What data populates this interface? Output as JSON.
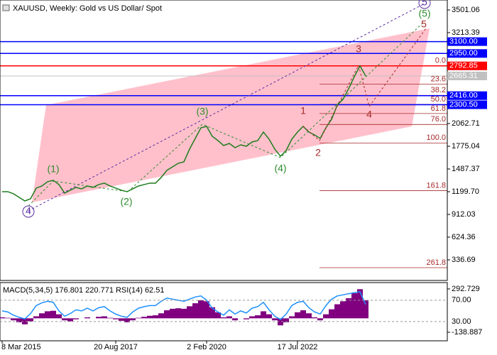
{
  "chart_data": {
    "type": "line",
    "title": "XAUUSD, Weekly:  Gold vs US Dollar/ Spot",
    "categories": [
      "8 Mar 2015",
      null,
      null,
      null,
      null,
      null,
      null,
      null,
      null,
      null,
      null,
      null,
      null,
      null,
      null,
      null,
      null,
      null,
      null,
      null,
      "20 Aug 2017",
      null,
      null,
      null,
      null,
      null,
      null,
      null,
      null,
      null,
      null,
      null,
      null,
      null,
      null,
      null,
      "2 Feb 2020",
      null,
      null,
      null,
      null,
      null,
      null,
      null,
      null,
      null,
      null,
      null,
      null,
      null,
      null,
      null,
      "17 Jul 2022",
      null,
      null,
      null,
      null,
      null,
      null,
      null,
      null,
      null,
      null,
      null,
      null
    ],
    "series": [
      {
        "name": "XAUUSD",
        "color": "#1e7d1e",
        "values": [
          1200,
          1200,
          1173,
          1128,
          1083,
          1110,
          1245,
          1272,
          1326,
          1344,
          1290,
          1182,
          1218,
          1254,
          1236,
          1272,
          1254,
          1290,
          1308,
          1272,
          1245,
          1218,
          1200,
          1236,
          1272,
          1290,
          1308,
          1308,
          1380,
          1470,
          1514,
          1559,
          1577,
          1739,
          1874,
          2009,
          2027,
          1901,
          1847,
          1784,
          1811,
          1757,
          1793,
          1775,
          1829,
          1847,
          1955,
          1865,
          1739,
          1649,
          1721,
          1865,
          1955,
          2027,
          1955,
          1919,
          1874,
          2009,
          2117,
          2297,
          2368,
          2503,
          2656,
          2792.85,
          2665.31
        ]
      }
    ],
    "ylim": [
      76,
      3627
    ],
    "yticks": [
      3501.06,
      3213.39,
      2062.71,
      1775.04,
      1487.37,
      {
        "value": 1199.7,
        "label": "1199.70"
      },
      912.03,
      624.36,
      336.69
    ],
    "levels": [
      {
        "price": 3100,
        "label": "3100.00",
        "color": "#0000ff"
      },
      {
        "price": 2950,
        "label": "2950.00",
        "color": "#0000ff"
      },
      {
        "price": 2792.85,
        "color": "#ff0000"
      },
      {
        "price": 2665.31,
        "color": "#c0c0c0"
      },
      {
        "price": 2416,
        "label": "2416.00",
        "color": "#0000ff"
      },
      {
        "price": 2300.5,
        "label": "2300.50",
        "color": "#0000ff"
      }
    ],
    "fibonacci": [
      {
        "level": "0.0",
        "price": 2792.85
      },
      {
        "level": "23.6",
        "price": 2562
      },
      {
        "level": "38.2",
        "price": 2420
      },
      {
        "level": "50.0",
        "price": 2305
      },
      {
        "level": "61.8",
        "price": 2190
      },
      {
        "level": "76.0",
        "price": 2051
      },
      {
        "level": "100.0",
        "price": 1817
      },
      {
        "level": "161.8",
        "price": 1214
      },
      {
        "level": "261.8",
        "price": 238
      }
    ],
    "annotations": [
      {
        "text": "4",
        "color": "#5a2ca0"
      },
      {
        "text": "(1)",
        "color": "#2e8b2e"
      },
      {
        "text": "(2)",
        "color": "#2e8b2e"
      },
      {
        "text": "(3)",
        "color": "#2e8b2e"
      },
      {
        "text": "(4)",
        "color": "#2e8b2e"
      },
      {
        "text": "(5)",
        "color": "#2e8b2e"
      },
      {
        "text": "5",
        "color": "#5a2ca0"
      },
      {
        "text": "1",
        "color": "#a52a2a"
      },
      {
        "text": "2",
        "color": "#a52a2a"
      },
      {
        "text": "3",
        "color": "#a52a2a"
      },
      {
        "text": "4",
        "color": "#a52a2a"
      },
      {
        "text": "5",
        "color": "#a52a2a"
      }
    ],
    "indicator": {
      "title": "MACD(5,34,5) 176.801 220.771 RSI(14) 62.51",
      "macd": {
        "name": "MACD",
        "color": "#800080",
        "values": [
          10,
          5,
          -20,
          -40,
          -60,
          -30,
          20,
          50,
          70,
          75,
          40,
          -20,
          -30,
          -10,
          0,
          10,
          0,
          15,
          20,
          5,
          -10,
          -25,
          -40,
          -20,
          5,
          15,
          25,
          30,
          50,
          80,
          95,
          100,
          95,
          120,
          150,
          180,
          170,
          110,
          60,
          10,
          20,
          -20,
          0,
          -10,
          20,
          30,
          70,
          40,
          -20,
          -70,
          -40,
          20,
          60,
          80,
          50,
          10,
          -20,
          40,
          90,
          140,
          170,
          200,
          250,
          290,
          180
        ]
      },
      "rsi": {
        "name": "RSI",
        "color": "#1e90ff",
        "values": [
          50,
          48,
          42,
          38,
          35,
          45,
          60,
          65,
          68,
          66,
          50,
          40,
          45,
          52,
          50,
          55,
          50,
          56,
          58,
          50,
          44,
          40,
          38,
          48,
          55,
          58,
          60,
          60,
          68,
          74,
          72,
          70,
          68,
          72,
          76,
          78,
          70,
          55,
          48,
          42,
          52,
          44,
          50,
          46,
          55,
          58,
          66,
          52,
          40,
          34,
          44,
          60,
          66,
          68,
          56,
          48,
          44,
          60,
          72,
          78,
          80,
          82,
          84,
          86,
          62
        ]
      },
      "ylim": [
        -224,
        356
      ],
      "yticks": [
        292.729,
        -138.887
      ],
      "y2lim": [
        -6,
        103
      ],
      "y2ticks": [
        {
          "value": 70,
          "label": "70.00"
        },
        {
          "value": 30,
          "label": "30.00"
        }
      ]
    }
  }
}
